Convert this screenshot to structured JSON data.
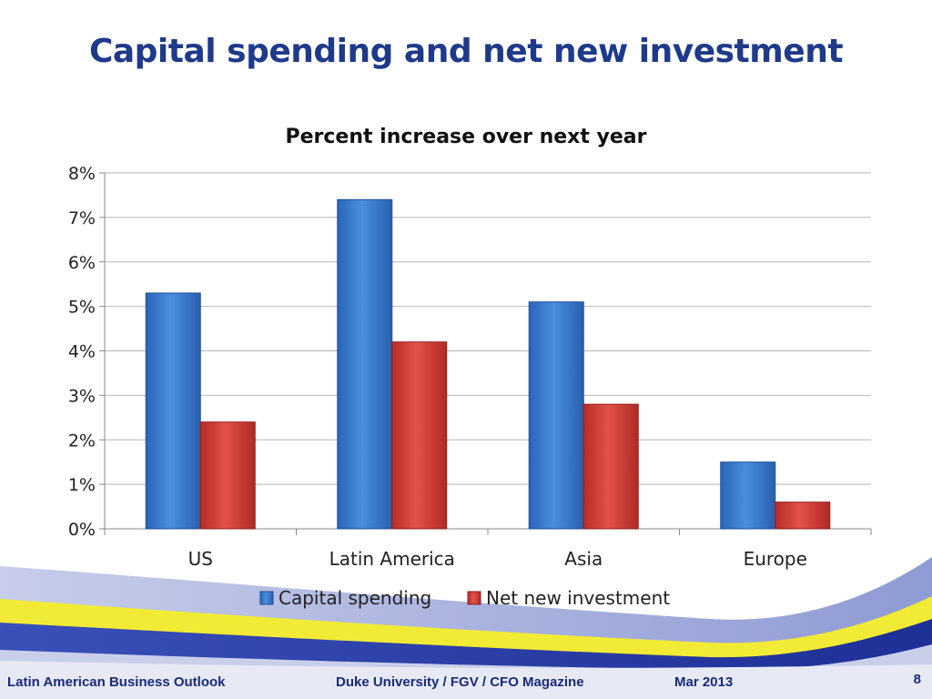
{
  "slide": {
    "title": "Capital spending and net new investment",
    "footer_left": "Latin American Business Outlook",
    "footer_center": "Duke University / FGV / CFO Magazine",
    "footer_date": "Mar 2013",
    "page_number": "8"
  },
  "chart_data": {
    "type": "bar",
    "title": "Percent increase over next year",
    "categories": [
      "US",
      "Latin America",
      "Asia",
      "Europe"
    ],
    "series": [
      {
        "name": "Capital spending",
        "values": [
          5.3,
          7.4,
          5.1,
          1.5
        ],
        "color": "#3a7fd5"
      },
      {
        "name": "Net new investment",
        "values": [
          2.4,
          4.2,
          2.8,
          0.6
        ],
        "color": "#d9403a"
      }
    ],
    "ylim": [
      0,
      8
    ],
    "yticks": [
      "0%",
      "1%",
      "2%",
      "3%",
      "4%",
      "5%",
      "6%",
      "7%",
      "8%"
    ],
    "grid": true,
    "legend": "bottom"
  }
}
